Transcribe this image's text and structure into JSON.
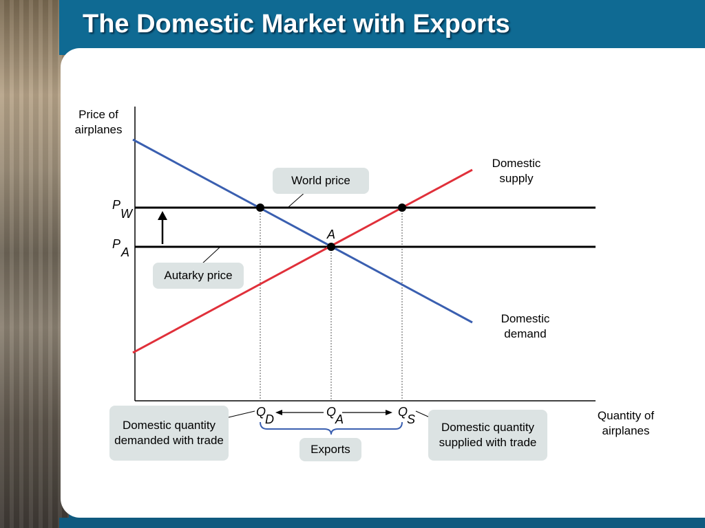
{
  "slide": {
    "title": "The Domestic Market with Exports"
  },
  "axes": {
    "ylabel": "Price of airplanes",
    "xlabel": "Quantity of airplanes"
  },
  "curves": {
    "supply_label": "Domestic supply",
    "demand_label": "Domestic demand"
  },
  "prices": {
    "world": {
      "main": "P",
      "sub": "W"
    },
    "autarky": {
      "main": "P",
      "sub": "A"
    }
  },
  "point_label": "A",
  "quantities": {
    "qd": {
      "main": "Q",
      "sub": "D"
    },
    "qa": {
      "main": "Q",
      "sub": "A"
    },
    "qs": {
      "main": "Q",
      "sub": "S"
    }
  },
  "callouts": {
    "world_price": "World price",
    "autarky_price": "Autarky price",
    "qd_desc": "Domestic quantity demanded with trade",
    "qs_desc": "Domestic quantity supplied with trade",
    "exports": "Exports"
  },
  "colors": {
    "supply": "#e0303a",
    "demand": "#3a5fb0",
    "title_bar": "#0f6a93",
    "box": "#dce3e3"
  }
}
